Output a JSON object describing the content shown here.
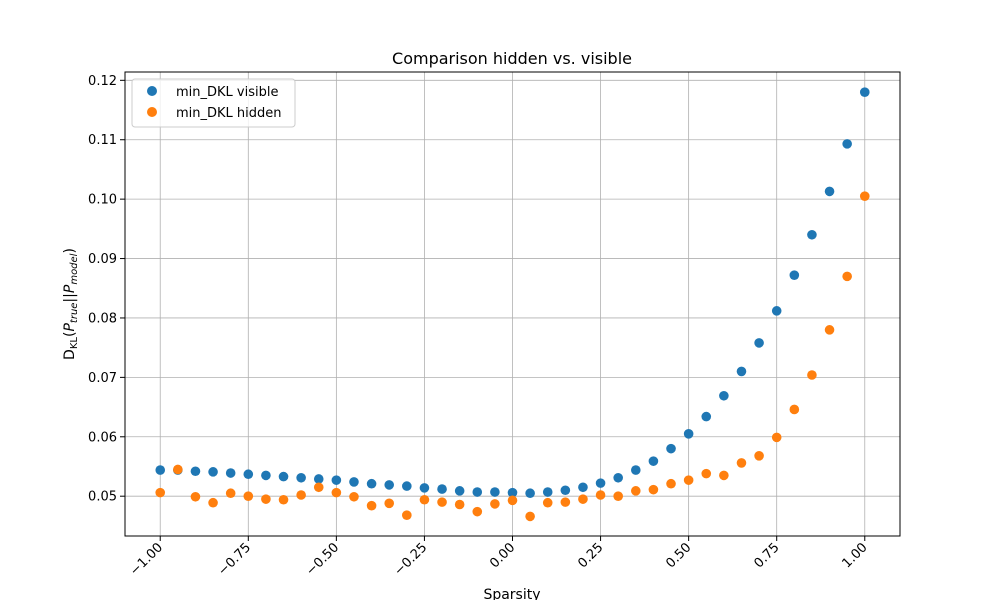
{
  "chart_data": {
    "type": "scatter",
    "title": "Comparison hidden vs. visible",
    "xlabel": "Sparsity",
    "ylabel_parts": {
      "d": "D",
      "kl": "KL",
      "p1": "P",
      "true": "true",
      "p2": "P",
      "model": "model"
    },
    "xlim": [
      -1.1,
      1.1
    ],
    "ylim": [
      0.0433,
      0.1214
    ],
    "xticks": [
      -1.0,
      -0.75,
      -0.5,
      -0.25,
      0.0,
      0.25,
      0.5,
      0.75,
      1.0
    ],
    "xtick_labels": [
      "−1.00",
      "−0.75",
      "−0.50",
      "−0.25",
      "0.00",
      "0.25",
      "0.50",
      "0.75",
      "1.00"
    ],
    "yticks": [
      0.05,
      0.06,
      0.07,
      0.08,
      0.09,
      0.1,
      0.11,
      0.12
    ],
    "ytick_labels": [
      "0.05",
      "0.06",
      "0.07",
      "0.08",
      "0.09",
      "0.10",
      "0.11",
      "0.12"
    ],
    "grid": true,
    "legend_position": "upper-left",
    "x": [
      -1.0,
      -0.95,
      -0.9,
      -0.85,
      -0.8,
      -0.75,
      -0.7,
      -0.65,
      -0.6,
      -0.55,
      -0.5,
      -0.45,
      -0.4,
      -0.35,
      -0.3,
      -0.25,
      -0.2,
      -0.15,
      -0.1,
      -0.05,
      0.0,
      0.05,
      0.1,
      0.15,
      0.2,
      0.25,
      0.3,
      0.35,
      0.4,
      0.45,
      0.5,
      0.55,
      0.6,
      0.65,
      0.7,
      0.75,
      0.8,
      0.85,
      0.9,
      0.95,
      1.0
    ],
    "series": [
      {
        "name": "min_DKL visible",
        "color": "#1f77b4",
        "values": [
          0.0544,
          0.0544,
          0.0542,
          0.0541,
          0.0539,
          0.0537,
          0.0535,
          0.0533,
          0.0531,
          0.0529,
          0.0527,
          0.0524,
          0.0521,
          0.0519,
          0.0517,
          0.0514,
          0.0512,
          0.0509,
          0.0507,
          0.0507,
          0.0506,
          0.0505,
          0.0507,
          0.051,
          0.0515,
          0.0522,
          0.0531,
          0.0544,
          0.0559,
          0.058,
          0.0605,
          0.0634,
          0.0669,
          0.071,
          0.0758,
          0.0812,
          0.0872,
          0.094,
          0.1013,
          0.1093,
          0.118
        ]
      },
      {
        "name": "min_DKL hidden",
        "color": "#ff7f0e",
        "values": [
          0.0506,
          0.0545,
          0.0499,
          0.0489,
          0.0505,
          0.05,
          0.0495,
          0.0494,
          0.0502,
          0.0515,
          0.0506,
          0.0499,
          0.0484,
          0.0488,
          0.0468,
          0.0494,
          0.049,
          0.0486,
          0.0474,
          0.0487,
          0.0493,
          0.0466,
          0.0489,
          0.049,
          0.0495,
          0.0502,
          0.05,
          0.0509,
          0.0511,
          0.0521,
          0.0527,
          0.0538,
          0.0535,
          0.0556,
          0.0568,
          0.0599,
          0.0646,
          0.0704,
          0.078,
          0.087,
          0.1005
        ]
      }
    ]
  }
}
